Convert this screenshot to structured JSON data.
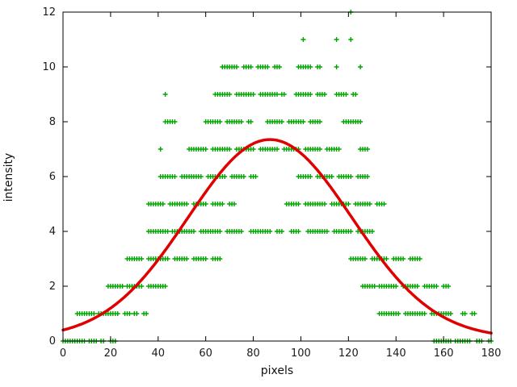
{
  "chart_data": {
    "type": "scatter",
    "title": "",
    "xlabel": "pixels",
    "ylabel": "intensity",
    "xlim": [
      0,
      180
    ],
    "ylim": [
      0,
      12
    ],
    "xticks": [
      0,
      20,
      40,
      60,
      80,
      100,
      120,
      140,
      160,
      180
    ],
    "yticks": [
      0,
      2,
      4,
      6,
      8,
      10,
      12
    ],
    "grid": false,
    "legend": "none",
    "styles": {
      "background": "#ffffff",
      "axis_color": "#000000",
      "tick_label_color": "#1a1a1a",
      "point_color": "#00a400",
      "curve_color": "#e00000",
      "curve_width": 3.5
    },
    "series": [
      {
        "name": "measured-intensity-points",
        "type": "scatter",
        "marker": "plus",
        "color": "#00a400",
        "points_by_level": [
          {
            "y": 0,
            "x_ranges": [
              [
                0,
                9
              ],
              [
                11,
                14
              ],
              [
                16,
                17
              ],
              [
                20,
                22
              ],
              [
                156,
                163
              ],
              [
                165,
                171
              ],
              [
                174,
                176
              ],
              [
                179,
                180
              ]
            ]
          },
          {
            "y": 1,
            "x_ranges": [
              [
                6,
                13
              ],
              [
                15,
                23
              ],
              [
                26,
                28
              ],
              [
                30,
                31
              ],
              [
                34,
                35
              ],
              [
                133,
                141
              ],
              [
                144,
                152
              ],
              [
                155,
                163
              ],
              [
                168,
                169
              ],
              [
                172,
                173
              ]
            ]
          },
          {
            "y": 2,
            "x_ranges": [
              [
                19,
                25
              ],
              [
                27,
                33
              ],
              [
                36,
                43
              ],
              [
                126,
                131
              ],
              [
                133,
                140
              ],
              [
                143,
                149
              ],
              [
                152,
                157
              ],
              [
                160,
                162
              ]
            ]
          },
          {
            "y": 3,
            "x_ranges": [
              [
                27,
                33
              ],
              [
                36,
                44
              ],
              [
                47,
                52
              ],
              [
                55,
                60
              ],
              [
                63,
                66
              ],
              [
                121,
                127
              ],
              [
                130,
                136
              ],
              [
                139,
                143
              ],
              [
                146,
                150
              ]
            ]
          },
          {
            "y": 4,
            "x_ranges": [
              [
                36,
                44
              ],
              [
                46,
                55
              ],
              [
                58,
                66
              ],
              [
                69,
                75
              ],
              [
                79,
                87
              ],
              [
                90,
                92
              ],
              [
                96,
                99
              ],
              [
                103,
                111
              ],
              [
                114,
                121
              ],
              [
                124,
                130
              ]
            ]
          },
          {
            "y": 5,
            "x_ranges": [
              [
                36,
                42
              ],
              [
                45,
                52
              ],
              [
                55,
                60
              ],
              [
                63,
                67
              ],
              [
                70,
                72
              ],
              [
                94,
                99
              ],
              [
                102,
                110
              ],
              [
                113,
                120
              ],
              [
                123,
                129
              ],
              [
                132,
                135
              ]
            ]
          },
          {
            "y": 6,
            "x_ranges": [
              [
                41,
                47
              ],
              [
                50,
                58
              ],
              [
                61,
                68
              ],
              [
                71,
                76
              ],
              [
                79,
                81
              ],
              [
                99,
                104
              ],
              [
                107,
                113
              ],
              [
                116,
                121
              ],
              [
                124,
                128
              ]
            ]
          },
          {
            "y": 7,
            "x_ranges": [
              [
                41,
                41
              ],
              [
                53,
                60
              ],
              [
                63,
                70
              ],
              [
                73,
                80
              ],
              [
                83,
                90
              ],
              [
                93,
                99
              ],
              [
                102,
                108
              ],
              [
                111,
                116
              ],
              [
                125,
                128
              ]
            ]
          },
          {
            "y": 8,
            "x_ranges": [
              [
                43,
                47
              ],
              [
                60,
                66
              ],
              [
                69,
                75
              ],
              [
                78,
                79
              ],
              [
                86,
                92
              ],
              [
                95,
                101
              ],
              [
                104,
                108
              ],
              [
                118,
                125
              ]
            ]
          },
          {
            "y": 9,
            "x_ranges": [
              [
                43,
                43
              ],
              [
                64,
                70
              ],
              [
                73,
                80
              ],
              [
                83,
                90
              ],
              [
                92,
                93
              ],
              [
                98,
                104
              ],
              [
                107,
                110
              ],
              [
                115,
                119
              ],
              [
                122,
                123
              ]
            ]
          },
          {
            "y": 10,
            "x_ranges": [
              [
                67,
                73
              ],
              [
                76,
                79
              ],
              [
                82,
                86
              ],
              [
                89,
                91
              ],
              [
                99,
                104
              ],
              [
                107,
                108
              ],
              [
                115,
                115
              ],
              [
                125,
                125
              ]
            ]
          },
          {
            "y": 11,
            "x_ranges": [
              [
                101,
                101
              ],
              [
                115,
                115
              ],
              [
                121,
                121
              ]
            ]
          },
          {
            "y": 12,
            "x_ranges": [
              [
                121,
                121
              ]
            ]
          }
        ]
      },
      {
        "name": "gaussian-fit-curve",
        "type": "line",
        "color": "#e00000",
        "width": 3.5,
        "model": "gaussian",
        "baseline": 0.1,
        "amplitude": 7.25,
        "mean": 87,
        "sigma": 34.5
      }
    ]
  }
}
